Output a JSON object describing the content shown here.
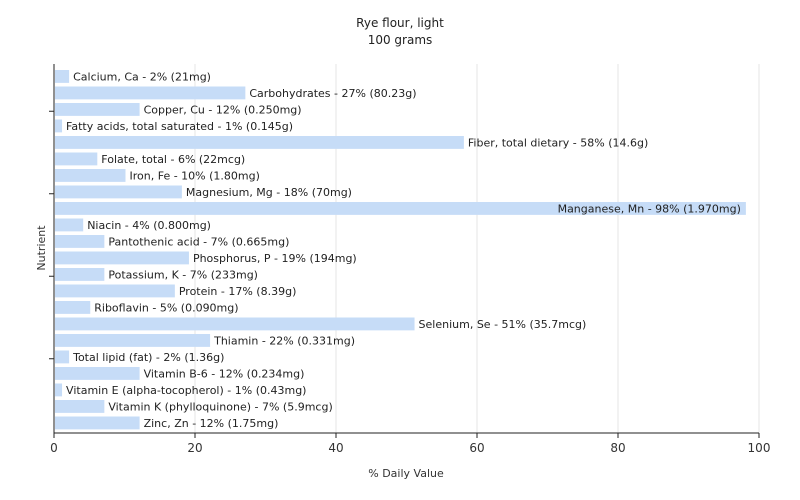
{
  "chart_data": {
    "type": "bar",
    "orientation": "horizontal",
    "title": "Rye flour, light",
    "subtitle": "100 grams",
    "xlabel": "% Daily Value",
    "ylabel": "Nutrient",
    "xlim": [
      0,
      100
    ],
    "xticks": [
      "0",
      "20",
      "40",
      "60",
      "80",
      "100"
    ],
    "grid": true,
    "bar_color": "#c6dcf7",
    "categories": [
      "Calcium, Ca - 2% (21mg)",
      "Carbohydrates - 27% (80.23g)",
      "Copper, Cu - 12% (0.250mg)",
      "Fatty acids, total saturated - 1% (0.145g)",
      "Fiber, total dietary - 58% (14.6g)",
      "Folate, total - 6% (22mcg)",
      "Iron, Fe - 10% (1.80mg)",
      "Magnesium, Mg - 18% (70mg)",
      "Manganese, Mn - 98% (1.970mg)",
      "Niacin - 4% (0.800mg)",
      "Pantothenic acid - 7% (0.665mg)",
      "Phosphorus, P - 19% (194mg)",
      "Potassium, K - 7% (233mg)",
      "Protein - 17% (8.39g)",
      "Riboflavin - 5% (0.090mg)",
      "Selenium, Se - 51% (35.7mcg)",
      "Thiamin - 22% (0.331mg)",
      "Total lipid (fat) - 2% (1.36g)",
      "Vitamin B-6 - 12% (0.234mg)",
      "Vitamin E (alpha-tocopherol) - 1% (0.43mg)",
      "Vitamin K (phylloquinone) - 7% (5.9mcg)",
      "Zinc, Zn - 12% (1.75mg)"
    ],
    "values": [
      2,
      27,
      12,
      1,
      58,
      6,
      10,
      18,
      98,
      4,
      7,
      19,
      7,
      17,
      5,
      51,
      22,
      2,
      12,
      1,
      7,
      12
    ]
  }
}
